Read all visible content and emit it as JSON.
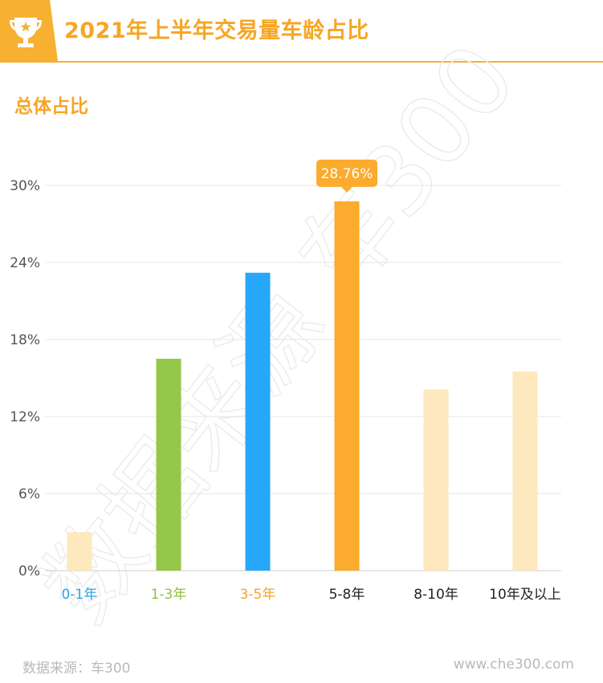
{
  "header": {
    "title": "2021年上半年交易量车龄占比",
    "icon": "trophy-icon",
    "accent_color": "#f7b032"
  },
  "subtitle": "总体占比",
  "watermark": "数据来源 车300",
  "footer": {
    "source": "数据来源：车300",
    "site": "www.che300.com"
  },
  "chart_data": {
    "type": "bar",
    "title": "",
    "xlabel": "",
    "ylabel": "",
    "ylim": [
      0,
      30
    ],
    "yticks": [
      "0%",
      "6%",
      "12%",
      "18%",
      "24%",
      "30%"
    ],
    "grid": true,
    "categories": [
      "0-1年",
      "1-3年",
      "3-5年",
      "5-8年",
      "8-10年",
      "10年及以上"
    ],
    "values": [
      3.0,
      16.5,
      23.2,
      28.76,
      14.1,
      15.5
    ],
    "bar_colors": [
      "#fde9bd",
      "#95c74b",
      "#27a7fa",
      "#fbab2d",
      "#fde9bd",
      "#fde9bd"
    ],
    "label_colors": [
      "#29a6ee",
      "#8dc045",
      "#f6a623",
      "#222222",
      "#222222",
      "#222222"
    ],
    "highlight": {
      "index": 3,
      "label": "28.76%"
    }
  }
}
